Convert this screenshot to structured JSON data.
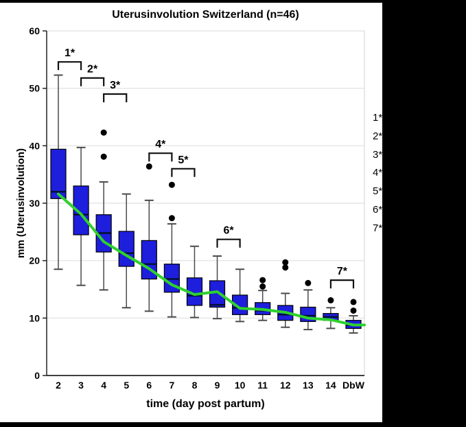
{
  "title": "Uterusinvolution Switzerland (n=46)",
  "chart_data": {
    "type": "boxplot",
    "title": "Uterusinvolution Switzerland (n=46)",
    "xlabel": "time (day post partum)",
    "ylabel": "mm (Uterusinvolution)",
    "ylim": [
      0,
      60
    ],
    "yticks": [
      0,
      10,
      20,
      30,
      40,
      50,
      60
    ],
    "grid": "horizontal-light",
    "legend_position": "right-clipped",
    "categories": [
      "2",
      "3",
      "4",
      "5",
      "6",
      "7",
      "8",
      "9",
      "10",
      "11",
      "12",
      "13",
      "14",
      "DbW"
    ],
    "boxes": [
      {
        "category": "2",
        "whisker_low": 18.5,
        "q1": 30.8,
        "median": 32.0,
        "q3": 39.4,
        "whisker_high": 52.3,
        "outliers": []
      },
      {
        "category": "3",
        "whisker_low": 15.7,
        "q1": 24.5,
        "median": 28.0,
        "q3": 33.0,
        "whisker_high": 39.7,
        "outliers": []
      },
      {
        "category": "4",
        "whisker_low": 14.9,
        "q1": 21.5,
        "median": 24.8,
        "q3": 28.0,
        "whisker_high": 33.7,
        "outliers": [
          38.1,
          42.3
        ]
      },
      {
        "category": "5",
        "whisker_low": 11.8,
        "q1": 19.0,
        "median": 21.3,
        "q3": 25.1,
        "whisker_high": 31.6,
        "outliers": []
      },
      {
        "category": "6",
        "whisker_low": 11.2,
        "q1": 16.8,
        "median": 19.4,
        "q3": 23.5,
        "whisker_high": 30.5,
        "outliers": [
          36.4
        ]
      },
      {
        "category": "7",
        "whisker_low": 10.2,
        "q1": 14.5,
        "median": 16.8,
        "q3": 19.4,
        "whisker_high": 26.4,
        "outliers": [
          27.4,
          33.2
        ]
      },
      {
        "category": "8",
        "whisker_low": 10.1,
        "q1": 12.2,
        "median": 13.9,
        "q3": 17.0,
        "whisker_high": 22.5,
        "outliers": []
      },
      {
        "category": "9",
        "whisker_low": 9.9,
        "q1": 11.9,
        "median": 12.3,
        "q3": 16.5,
        "whisker_high": 20.8,
        "outliers": []
      },
      {
        "category": "10",
        "whisker_low": 9.4,
        "q1": 10.6,
        "median": 11.8,
        "q3": 14.0,
        "whisker_high": 18.5,
        "outliers": []
      },
      {
        "category": "11",
        "whisker_low": 9.6,
        "q1": 10.6,
        "median": 11.3,
        "q3": 12.7,
        "whisker_high": 14.8,
        "outliers": [
          15.5,
          16.6
        ]
      },
      {
        "category": "12",
        "whisker_low": 8.4,
        "q1": 9.6,
        "median": 10.6,
        "q3": 12.2,
        "whisker_high": 14.3,
        "outliers": [
          18.8,
          19.7
        ]
      },
      {
        "category": "13",
        "whisker_low": 8.0,
        "q1": 9.4,
        "median": 10.4,
        "q3": 11.9,
        "whisker_high": 14.9,
        "outliers": [
          16.1
        ]
      },
      {
        "category": "14",
        "whisker_low": 8.2,
        "q1": 9.6,
        "median": 10.2,
        "q3": 10.8,
        "whisker_high": 11.8,
        "outliers": [
          13.1
        ]
      },
      {
        "category": "DbW",
        "whisker_low": 7.4,
        "q1": 8.2,
        "median": 8.8,
        "q3": 9.6,
        "whisker_high": 10.4,
        "outliers": [
          11.3,
          12.8
        ]
      }
    ],
    "mean_line": {
      "name": "mean-trend",
      "values": [
        31.6,
        28.1,
        23.3,
        20.9,
        18.6,
        15.8,
        14.1,
        14.6,
        11.7,
        11.5,
        11.0,
        10.0,
        9.7,
        8.8
      ],
      "extends_to_right_edge": true
    },
    "significance_brackets": [
      {
        "label": "1*",
        "from": "2",
        "to": "3",
        "y_value": 54.6
      },
      {
        "label": "2*",
        "from": "3",
        "to": "4",
        "y_value": 51.8
      },
      {
        "label": "3*",
        "from": "4",
        "to": "5",
        "y_value": 49.0
      },
      {
        "label": "4*",
        "from": "6",
        "to": "7",
        "y_value": 38.7
      },
      {
        "label": "5*",
        "from": "7",
        "to": "8",
        "y_value": 36.0
      },
      {
        "label": "6*",
        "from": "9",
        "to": "10",
        "y_value": 23.7
      },
      {
        "label": "7*",
        "from": "14",
        "to": "DbW",
        "y_value": 16.6
      }
    ],
    "colors": {
      "box_fill": "#1e1edd",
      "box_stroke": "#000000",
      "median": "#00102e",
      "whisker": "#4a4a4a",
      "mean_line": "#2ed12e",
      "outlier": "#000000",
      "grid": "#e6e6e6",
      "axis": "#222222",
      "bracket": "#111111",
      "text": "#000000"
    }
  },
  "side_legend": {
    "note": "legend column clipped by black band at image right edge",
    "items": [
      "1*",
      "2*",
      "3*",
      "4*",
      "5*",
      "6*",
      "7*"
    ]
  }
}
